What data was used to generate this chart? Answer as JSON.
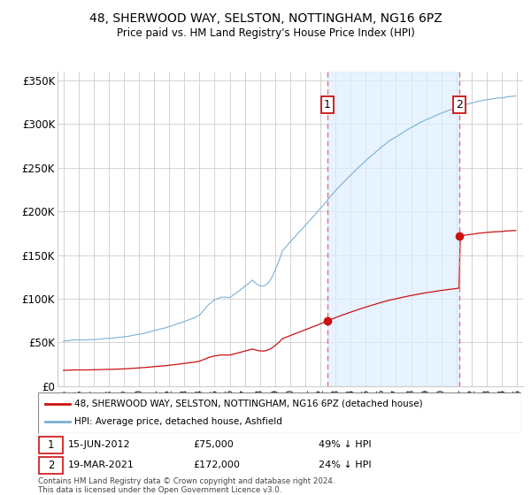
{
  "title": "48, SHERWOOD WAY, SELSTON, NOTTINGHAM, NG16 6PZ",
  "subtitle": "Price paid vs. HM Land Registry's House Price Index (HPI)",
  "ylim": [
    0,
    360000
  ],
  "yticks": [
    0,
    50000,
    100000,
    150000,
    200000,
    250000,
    300000,
    350000
  ],
  "ytick_labels": [
    "£0",
    "£50K",
    "£100K",
    "£150K",
    "£200K",
    "£250K",
    "£300K",
    "£350K"
  ],
  "hpi_color": "#7ab0d4",
  "property_color": "#cc1111",
  "dashed_color": "#e87070",
  "shade_color": "#ddeeff",
  "background_color": "#ffffff",
  "grid_color": "#cccccc",
  "sale1_date": 2012.46,
  "sale1_price": 75000,
  "sale1_label": "1",
  "sale2_date": 2021.21,
  "sale2_price": 172000,
  "sale2_label": "2",
  "legend_property": "48, SHERWOOD WAY, SELSTON, NOTTINGHAM, NG16 6PZ (detached house)",
  "legend_hpi": "HPI: Average price, detached house, Ashfield",
  "ann1_date": "15-JUN-2012",
  "ann1_price": "£75,000",
  "ann1_pct": "49% ↓ HPI",
  "ann2_date": "19-MAR-2021",
  "ann2_price": "£172,000",
  "ann2_pct": "24% ↓ HPI",
  "copyright": "Contains HM Land Registry data © Crown copyright and database right 2024.\nThis data is licensed under the Open Government Licence v3.0."
}
